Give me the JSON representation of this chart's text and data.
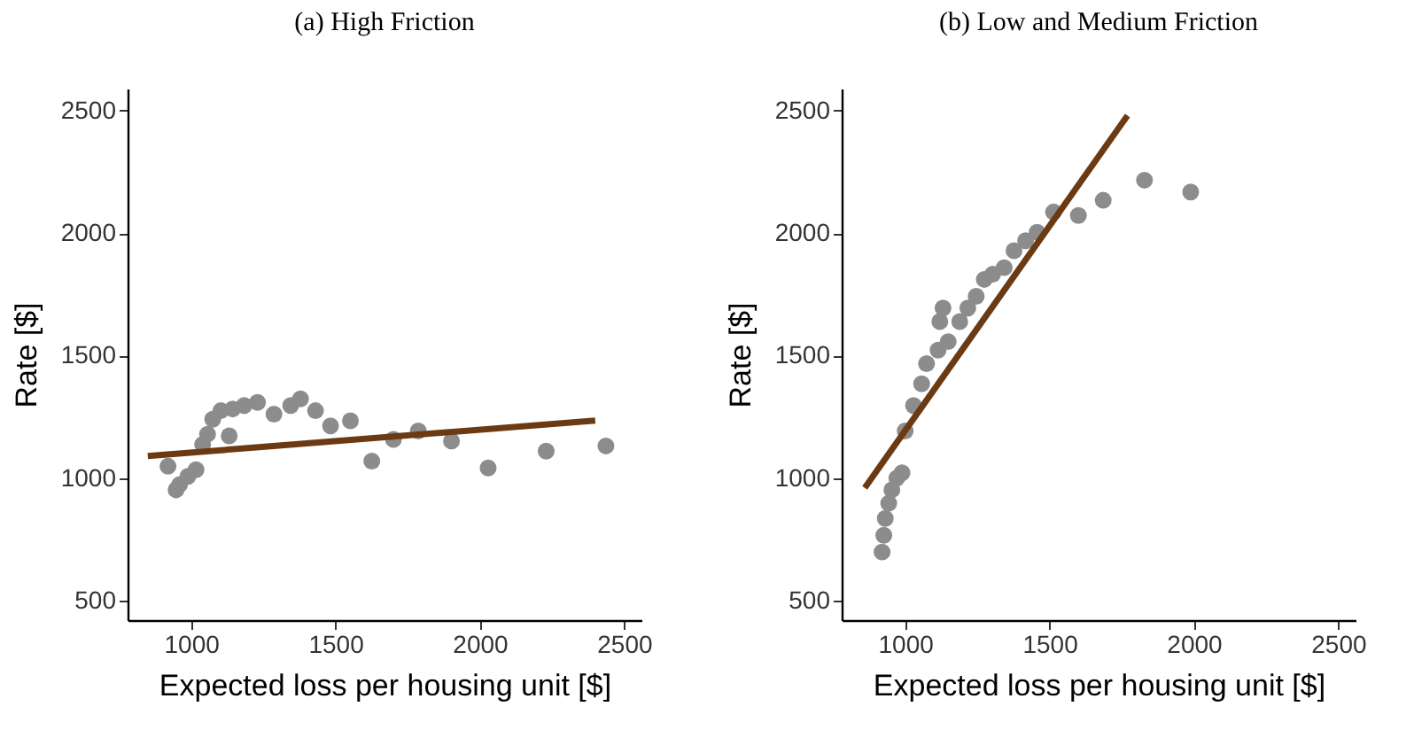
{
  "chart_data": [
    {
      "type": "scatter",
      "title": "(a) High Friction",
      "xlabel": "Expected loss per housing unit [$]",
      "ylabel": "Rate [$]",
      "xlim": [
        780,
        2560
      ],
      "ylim": [
        420,
        2590
      ],
      "xticks": [
        1000,
        1500,
        2000,
        2500
      ],
      "yticks": [
        500,
        1000,
        1500,
        2000,
        2500
      ],
      "grid": false,
      "series": [
        {
          "color": "#8c8c8c",
          "x": [
            920,
            948,
            960,
            989,
            1017,
            1040,
            1057,
            1075,
            1103,
            1144,
            1184,
            1230,
            1132,
            1287,
            1345,
            1379,
            1431,
            1483,
            1552,
            1626,
            1701,
            1787,
            1902,
            2029,
            2230,
            2437
          ],
          "values": [
            1048,
            952,
            973,
            1007,
            1034,
            1137,
            1179,
            1240,
            1275,
            1282,
            1296,
            1309,
            1172,
            1261,
            1296,
            1323,
            1275,
            1213,
            1234,
            1069,
            1158,
            1192,
            1151,
            1041,
            1110,
            1131
          ]
        },
        {
          "type": "line",
          "color": "#6b3a12",
          "x": [
            850,
            2400
          ],
          "values": [
            1090,
            1235
          ]
        }
      ]
    },
    {
      "type": "scatter",
      "title": "(b) Low and Medium Friction",
      "xlabel": "Expected loss per housing unit [$]",
      "ylabel": "Rate [$]",
      "xlim": [
        780,
        2560
      ],
      "ylim": [
        420,
        2590
      ],
      "xticks": [
        1000,
        1500,
        2000,
        2500
      ],
      "yticks": [
        500,
        1000,
        1500,
        2000,
        2500
      ],
      "grid": false,
      "series": [
        {
          "color": "#8c8c8c",
          "x": [
            920,
            926,
            931,
            943,
            954,
            971,
            989,
            1000,
            1029,
            1057,
            1074,
            1114,
            1149,
            1120,
            1131,
            1189,
            1217,
            1246,
            1274,
            1303,
            1343,
            1377,
            1417,
            1457,
            1514,
            1600,
            1686,
            1829,
            1989
          ],
          "values": [
            698,
            766,
            835,
            897,
            952,
            1000,
            1021,
            1192,
            1296,
            1385,
            1467,
            1522,
            1557,
            1639,
            1694,
            1639,
            1694,
            1742,
            1811,
            1832,
            1859,
            1928,
            1969,
            2003,
            2086,
            2072,
            2134,
            2216,
            2168
          ]
        },
        {
          "type": "line",
          "color": "#6b3a12",
          "x": [
            860,
            1770
          ],
          "values": [
            960,
            2480
          ]
        }
      ]
    }
  ]
}
